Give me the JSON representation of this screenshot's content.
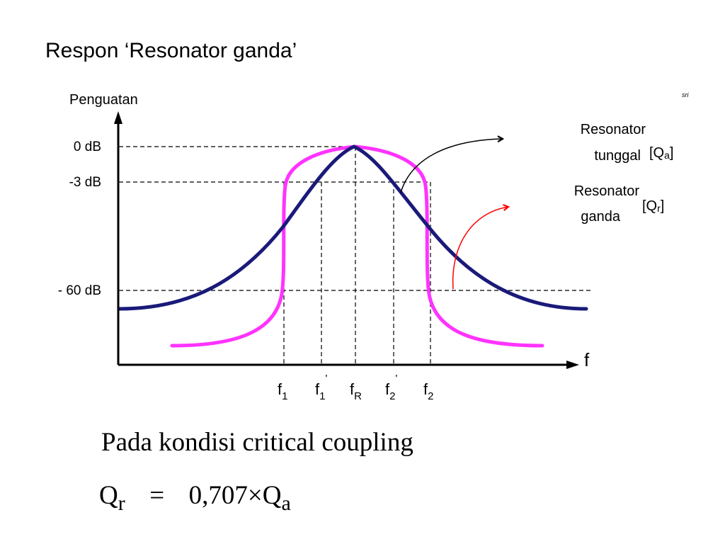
{
  "title": "Respon ‘Resonator ganda’",
  "corner_mark": "sri",
  "axes": {
    "y_label": "Penguatan",
    "x_label": "f",
    "y_ticks": [
      {
        "label": "0 dB",
        "db": 0
      },
      {
        "label": "-3 dB",
        "db": -3
      },
      {
        "label": "- 60 dB",
        "db": -60
      }
    ],
    "x_ticks": [
      {
        "base": "f",
        "sub": "1",
        "sup": ""
      },
      {
        "base": "f",
        "sub": "1",
        "sup": "'"
      },
      {
        "base": "f",
        "sub": "R",
        "sup": ""
      },
      {
        "base": "f",
        "sub": "2",
        "sup": "'"
      },
      {
        "base": "f",
        "sub": "2",
        "sup": ""
      }
    ]
  },
  "curves": {
    "single": {
      "line1": "Resonator",
      "line2": "tunggal",
      "q_base": "[Q",
      "q_sub": "a",
      "q_end": "]",
      "color": "#1a1a7a"
    },
    "double": {
      "line1": "Resonator",
      "line2": "ganda",
      "q_base": "[Q",
      "q_sub": "r",
      "q_end": "]",
      "color": "#ff33ff"
    }
  },
  "pointer_colors": {
    "single": "#000000",
    "double": "#ff0000"
  },
  "condition": "Pada kondisi critical coupling",
  "formula": {
    "lhs": "Q",
    "lhs_sub": "r",
    "equals": "=",
    "value": "0,707",
    "times": "×",
    "rhs": "Q",
    "rhs_sub": "a"
  }
}
